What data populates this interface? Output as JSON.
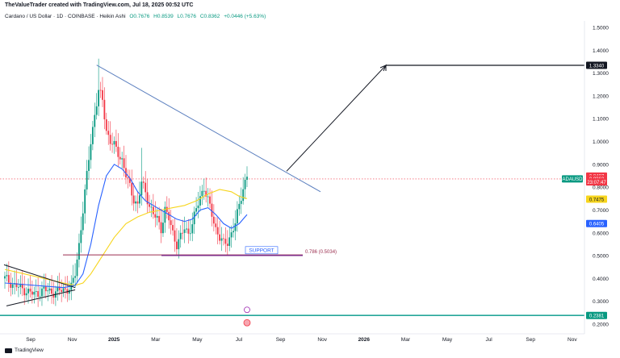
{
  "header": {
    "title": "TheValueTrader created with TradingView.com, Jul 18, 2025 00:52 UTC"
  },
  "symbol_bar": {
    "name": "Cardano / US Dollar · 1D · COINBASE · Heikin Ashi",
    "open": "O0.7676",
    "high": "H0.8539",
    "low": "L0.7676",
    "close": "C0.8362",
    "change": "+0.0446 (+5.63%)"
  },
  "footer": {
    "brand": "TradingView"
  },
  "colors": {
    "candle_up": "#089981",
    "candle_down": "#f23645",
    "ema_fast": "#2962ff",
    "ema_slow": "#f7d51d",
    "trend": "#5b7fbf",
    "fib": "#9b2e4f",
    "support": "#7b2d8e",
    "projection": "#131722",
    "base_line": "#26a69a",
    "price_red": "#f23645",
    "price_green": "#089981",
    "price_yellow": "#f7d51d",
    "price_blue": "#2962ff"
  },
  "chart_data": {
    "type": "candlestick",
    "title": "Cardano / US Dollar · 1D · COINBASE · Heikin Ashi",
    "xlabel": "",
    "ylabel": "",
    "x_ticks": [
      "Sep",
      "Nov",
      "2025",
      "Mar",
      "May",
      "Jul",
      "Sep",
      "Nov",
      "2026",
      "Mar",
      "May",
      "Jul",
      "Sep",
      "Nov"
    ],
    "y_ticks": [
      "0.2000",
      "0.3000",
      "0.4000",
      "0.5000",
      "0.6000",
      "0.7000",
      "0.8000",
      "0.9000",
      "1.0000",
      "1.1000",
      "1.2000",
      "1.3000",
      "1.4000",
      "1.5000"
    ],
    "y_range": [
      0.2,
      1.5
    ],
    "price_labels": [
      {
        "text": "1.3340",
        "value": 1.334,
        "style": "black"
      },
      {
        "text": "0.8487",
        "value": 0.8487,
        "style": "red"
      },
      {
        "text": "0.8362",
        "value": 0.8362,
        "style": "red"
      },
      {
        "text": "23:07:47",
        "value": 0.8232,
        "style": "red"
      },
      {
        "text": "ADAUSD",
        "value": 0.8362,
        "style": "green-tag"
      },
      {
        "text": "0.7475",
        "value": 0.7475,
        "style": "yellow"
      },
      {
        "text": "0.6405",
        "value": 0.6405,
        "style": "blue"
      },
      {
        "text": "0.2381",
        "value": 0.2381,
        "style": "green"
      }
    ],
    "annotations": {
      "support_label": "SUPPORT",
      "fib_label": "0.786 (0.5034)",
      "fib_value": 0.5034,
      "support_value": 0.508,
      "base_value": 0.2381,
      "projection_target": 1.334
    },
    "waypoints": [
      [
        0,
        0.4
      ],
      [
        5,
        0.37
      ],
      [
        10,
        0.35
      ],
      [
        15,
        0.33
      ],
      [
        20,
        0.35
      ],
      [
        25,
        0.34
      ],
      [
        30,
        0.35
      ],
      [
        34,
        0.36
      ],
      [
        36,
        0.42
      ],
      [
        38,
        0.55
      ],
      [
        40,
        0.7
      ],
      [
        42,
        0.85
      ],
      [
        44,
        1.0
      ],
      [
        46,
        1.12
      ],
      [
        48,
        1.22
      ],
      [
        50,
        1.18
      ],
      [
        52,
        1.05
      ],
      [
        54,
        1.0
      ],
      [
        56,
        0.98
      ],
      [
        58,
        0.95
      ],
      [
        60,
        0.92
      ],
      [
        62,
        0.85
      ],
      [
        64,
        0.8
      ],
      [
        66,
        0.75
      ],
      [
        68,
        0.72
      ],
      [
        70,
        0.82
      ],
      [
        72,
        0.78
      ],
      [
        74,
        0.72
      ],
      [
        76,
        0.68
      ],
      [
        78,
        0.66
      ],
      [
        80,
        0.62
      ],
      [
        82,
        0.7
      ],
      [
        84,
        0.66
      ],
      [
        86,
        0.6
      ],
      [
        88,
        0.55
      ],
      [
        90,
        0.58
      ],
      [
        92,
        0.62
      ],
      [
        94,
        0.6
      ],
      [
        96,
        0.64
      ],
      [
        98,
        0.7
      ],
      [
        100,
        0.76
      ],
      [
        102,
        0.8
      ],
      [
        104,
        0.74
      ],
      [
        106,
        0.68
      ],
      [
        108,
        0.62
      ],
      [
        110,
        0.58
      ],
      [
        112,
        0.55
      ],
      [
        114,
        0.56
      ],
      [
        116,
        0.6
      ],
      [
        118,
        0.64
      ],
      [
        120,
        0.72
      ],
      [
        122,
        0.8
      ],
      [
        124,
        0.85
      ]
    ],
    "ema_fast": [
      [
        0,
        0.38
      ],
      [
        30,
        0.36
      ],
      [
        36,
        0.37
      ],
      [
        40,
        0.42
      ],
      [
        44,
        0.55
      ],
      [
        48,
        0.72
      ],
      [
        52,
        0.85
      ],
      [
        56,
        0.9
      ],
      [
        60,
        0.88
      ],
      [
        64,
        0.84
      ],
      [
        68,
        0.78
      ],
      [
        72,
        0.74
      ],
      [
        76,
        0.72
      ],
      [
        80,
        0.7
      ],
      [
        84,
        0.68
      ],
      [
        88,
        0.66
      ],
      [
        92,
        0.65
      ],
      [
        96,
        0.66
      ],
      [
        100,
        0.7
      ],
      [
        104,
        0.71
      ],
      [
        108,
        0.68
      ],
      [
        112,
        0.64
      ],
      [
        116,
        0.62
      ],
      [
        120,
        0.64
      ],
      [
        124,
        0.68
      ]
    ],
    "ema_slow": [
      [
        0,
        0.44
      ],
      [
        10,
        0.42
      ],
      [
        20,
        0.4
      ],
      [
        30,
        0.38
      ],
      [
        36,
        0.37
      ],
      [
        40,
        0.38
      ],
      [
        44,
        0.42
      ],
      [
        50,
        0.5
      ],
      [
        56,
        0.58
      ],
      [
        62,
        0.64
      ],
      [
        68,
        0.67
      ],
      [
        74,
        0.69
      ],
      [
        80,
        0.7
      ],
      [
        86,
        0.71
      ],
      [
        92,
        0.72
      ],
      [
        98,
        0.74
      ],
      [
        104,
        0.77
      ],
      [
        110,
        0.79
      ],
      [
        116,
        0.78
      ],
      [
        120,
        0.76
      ],
      [
        124,
        0.75
      ]
    ]
  }
}
